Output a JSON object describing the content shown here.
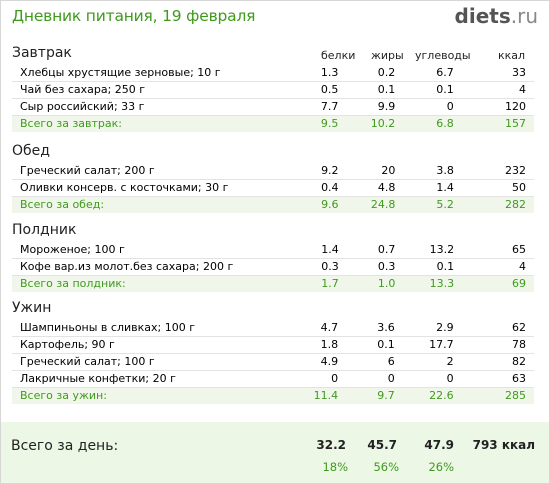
{
  "header": {
    "title": "Дневник питания, 19 февраля",
    "logo_bold": "diets",
    "logo_rest": ".ru"
  },
  "columns": [
    "белки",
    "жиры",
    "углеводы",
    "ккал"
  ],
  "meals": [
    {
      "name": "Завтрак",
      "items": [
        {
          "name": "Хлебцы хрустящие зерновые; 10 г",
          "protein": "1.3",
          "fat": "0.2",
          "carbs": "6.7",
          "kcal": "33"
        },
        {
          "name": "Чай без сахара; 250 г",
          "protein": "0.5",
          "fat": "0.1",
          "carbs": "0.1",
          "kcal": "4"
        },
        {
          "name": "Сыр российский; 33 г",
          "protein": "7.7",
          "fat": "9.9",
          "carbs": "0",
          "kcal": "120"
        }
      ],
      "total": {
        "label": "Всего за завтрак:",
        "protein": "9.5",
        "fat": "10.2",
        "carbs": "6.8",
        "kcal": "157"
      }
    },
    {
      "name": "Обед",
      "items": [
        {
          "name": "Греческий салат; 200 г",
          "protein": "9.2",
          "fat": "20",
          "carbs": "3.8",
          "kcal": "232"
        },
        {
          "name": "Оливки консерв. с косточками; 30 г",
          "protein": "0.4",
          "fat": "4.8",
          "carbs": "1.4",
          "kcal": "50"
        }
      ],
      "total": {
        "label": "Всего за обед:",
        "protein": "9.6",
        "fat": "24.8",
        "carbs": "5.2",
        "kcal": "282"
      }
    },
    {
      "name": "Полдник",
      "items": [
        {
          "name": "Мороженое; 100 г",
          "protein": "1.4",
          "fat": "0.7",
          "carbs": "13.2",
          "kcal": "65"
        },
        {
          "name": "Кофе вар.из молот.без сахара; 200 г",
          "protein": "0.3",
          "fat": "0.3",
          "carbs": "0.1",
          "kcal": "4"
        }
      ],
      "total": {
        "label": "Всего за полдник:",
        "protein": "1.7",
        "fat": "1.0",
        "carbs": "13.3",
        "kcal": "69"
      }
    },
    {
      "name": "Ужин",
      "items": [
        {
          "name": "Шампиньоны в сливках; 100 г",
          "protein": "4.7",
          "fat": "3.6",
          "carbs": "2.9",
          "kcal": "62"
        },
        {
          "name": "Картофель; 90 г",
          "protein": "1.8",
          "fat": "0.1",
          "carbs": "17.7",
          "kcal": "78"
        },
        {
          "name": "Греческий салат; 100 г",
          "protein": "4.9",
          "fat": "6",
          "carbs": "2",
          "kcal": "82"
        },
        {
          "name": "Лакричные конфетки; 20 г",
          "protein": "0",
          "fat": "0",
          "carbs": "0",
          "kcal": "63"
        }
      ],
      "total": {
        "label": "Всего за ужин:",
        "protein": "11.4",
        "fat": "9.7",
        "carbs": "22.6",
        "kcal": "285"
      }
    }
  ],
  "day_total": {
    "label": "Всего за день:",
    "protein": "32.2",
    "fat": "45.7",
    "carbs": "47.9",
    "kcal": "793 ккал",
    "protein_pct": "18%",
    "fat_pct": "56%",
    "carbs_pct": "26%"
  },
  "colors": {
    "accent": "#3f9a1e",
    "total_bg": "#f0f7ea",
    "day_bg": "#ecf7e6"
  }
}
